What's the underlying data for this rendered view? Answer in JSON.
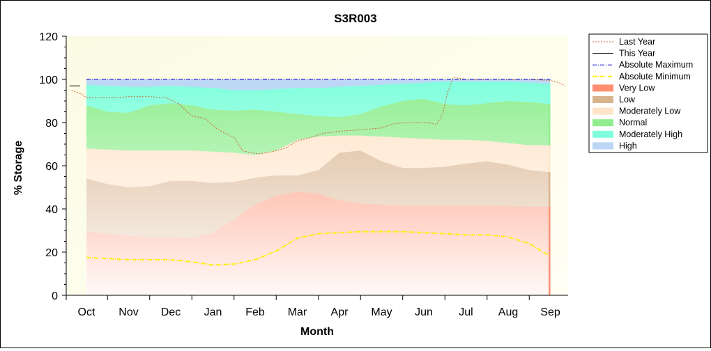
{
  "chart_data": {
    "type": "area",
    "title": "S3R003",
    "xlabel": "Month",
    "ylabel": "% Storage",
    "ylim": [
      0,
      120
    ],
    "yticks": [
      0,
      20,
      40,
      60,
      80,
      100,
      120
    ],
    "months": [
      "Oct",
      "Nov",
      "Dec",
      "Jan",
      "Feb",
      "Mar",
      "Apr",
      "May",
      "Jun",
      "Jul",
      "Aug",
      "Sep"
    ],
    "legend_position": "right",
    "bands": {
      "x": [
        0,
        0.5,
        1,
        1.5,
        2,
        2.5,
        3,
        3.5,
        4,
        4.5,
        5,
        5.5,
        6,
        6.5,
        7,
        7.5,
        8,
        8.5,
        9,
        9.5,
        10,
        10.5,
        11
      ],
      "series": [
        {
          "name": "Very Low",
          "color": "#ff8f70",
          "values": [
            29.5,
            28.5,
            27.5,
            27,
            27,
            26.5,
            29,
            35,
            42,
            46,
            48,
            47,
            44,
            42.5,
            42,
            41.5,
            41.5,
            41.5,
            41.5,
            41.5,
            41.2,
            41,
            41
          ]
        },
        {
          "name": "Low",
          "color": "#d9b48f",
          "values": [
            54,
            51.5,
            50,
            50.5,
            53,
            53,
            52,
            52.5,
            54.5,
            55.5,
            55.5,
            58,
            66,
            67,
            62,
            59,
            59,
            59.5,
            61,
            62,
            60.5,
            58,
            57
          ]
        },
        {
          "name": "Moderately Low",
          "color": "#ffe4c8",
          "values": [
            68,
            67.5,
            67,
            67,
            67,
            67,
            66.5,
            66,
            65,
            67,
            72,
            73.5,
            74,
            74,
            73.5,
            73,
            72.5,
            72,
            72,
            71.5,
            70.5,
            69.5,
            69.5
          ]
        },
        {
          "name": "Normal",
          "color": "#90ee90",
          "values": [
            88,
            85,
            84.5,
            88,
            89,
            88,
            86,
            85.5,
            86,
            85,
            84,
            83,
            82.5,
            84,
            87.5,
            90,
            91,
            88.5,
            88,
            89,
            90,
            89.5,
            88.5
          ]
        },
        {
          "name": "Moderately High",
          "color": "#80ffdc",
          "values": [
            97.5,
            97,
            96.5,
            96.5,
            97,
            96.5,
            96,
            95,
            95,
            95.5,
            96,
            96,
            96.5,
            97,
            97.5,
            98,
            98.5,
            99,
            99,
            99,
            99,
            98.5,
            98
          ]
        },
        {
          "name": "High",
          "color": "#bcd6f6",
          "values": [
            100,
            100,
            100,
            100,
            100,
            100,
            100,
            100,
            100,
            100,
            100,
            100,
            100,
            100,
            100,
            100,
            100,
            100,
            100,
            100,
            100,
            100,
            100
          ]
        }
      ]
    },
    "lines": [
      {
        "name": "Last Year",
        "color": "#cc6633",
        "style": "dotted",
        "x": [
          -0.35,
          -0.1,
          0,
          0.3,
          0.6,
          1,
          1.5,
          1.9,
          2.2,
          2.5,
          2.8,
          3.1,
          3.3,
          3.5,
          3.7,
          3.9,
          4.1,
          4.4,
          4.7,
          5,
          5.3,
          5.6,
          6,
          6.4,
          6.7,
          7,
          7.3,
          7.6,
          7.9,
          8.1,
          8.3,
          8.45,
          8.55,
          8.7,
          9,
          9.5,
          10,
          10.5,
          11,
          11.2,
          11.35
        ],
        "y": [
          95,
          93,
          91.5,
          91.5,
          91.5,
          92,
          92,
          91.5,
          88.5,
          83,
          82,
          77,
          75,
          73,
          67,
          66,
          65.5,
          66.5,
          68,
          71.5,
          73,
          75,
          76,
          76.5,
          77,
          77.5,
          79.5,
          80,
          80,
          80,
          79,
          84,
          93,
          101,
          100,
          100,
          100,
          100,
          99.5,
          98.5,
          97
        ]
      },
      {
        "name": "This Year",
        "color": "#000000",
        "style": "solid",
        "x": [
          -0.4,
          -0.15
        ],
        "y": [
          97,
          97
        ]
      },
      {
        "name": "Absolute Maximum",
        "color": "#0000cc",
        "style": "dashdot",
        "x": [
          0,
          11
        ],
        "y": [
          100,
          100
        ]
      },
      {
        "name": "Absolute Minimum",
        "color": "#ffee00",
        "style": "dashdot",
        "x": [
          0,
          0.5,
          1,
          1.5,
          2,
          2.5,
          3,
          3.5,
          4,
          4.5,
          5,
          5.5,
          6,
          6.5,
          7,
          7.5,
          8,
          8.5,
          9,
          9.5,
          10,
          10.5,
          11
        ],
        "y": [
          17.5,
          17,
          16.5,
          16.5,
          16.5,
          15.5,
          14,
          14.5,
          16.5,
          20.5,
          26.5,
          28.5,
          29,
          29.5,
          29.5,
          29.5,
          29,
          28.5,
          28,
          28,
          27,
          24,
          18
        ]
      }
    ]
  }
}
